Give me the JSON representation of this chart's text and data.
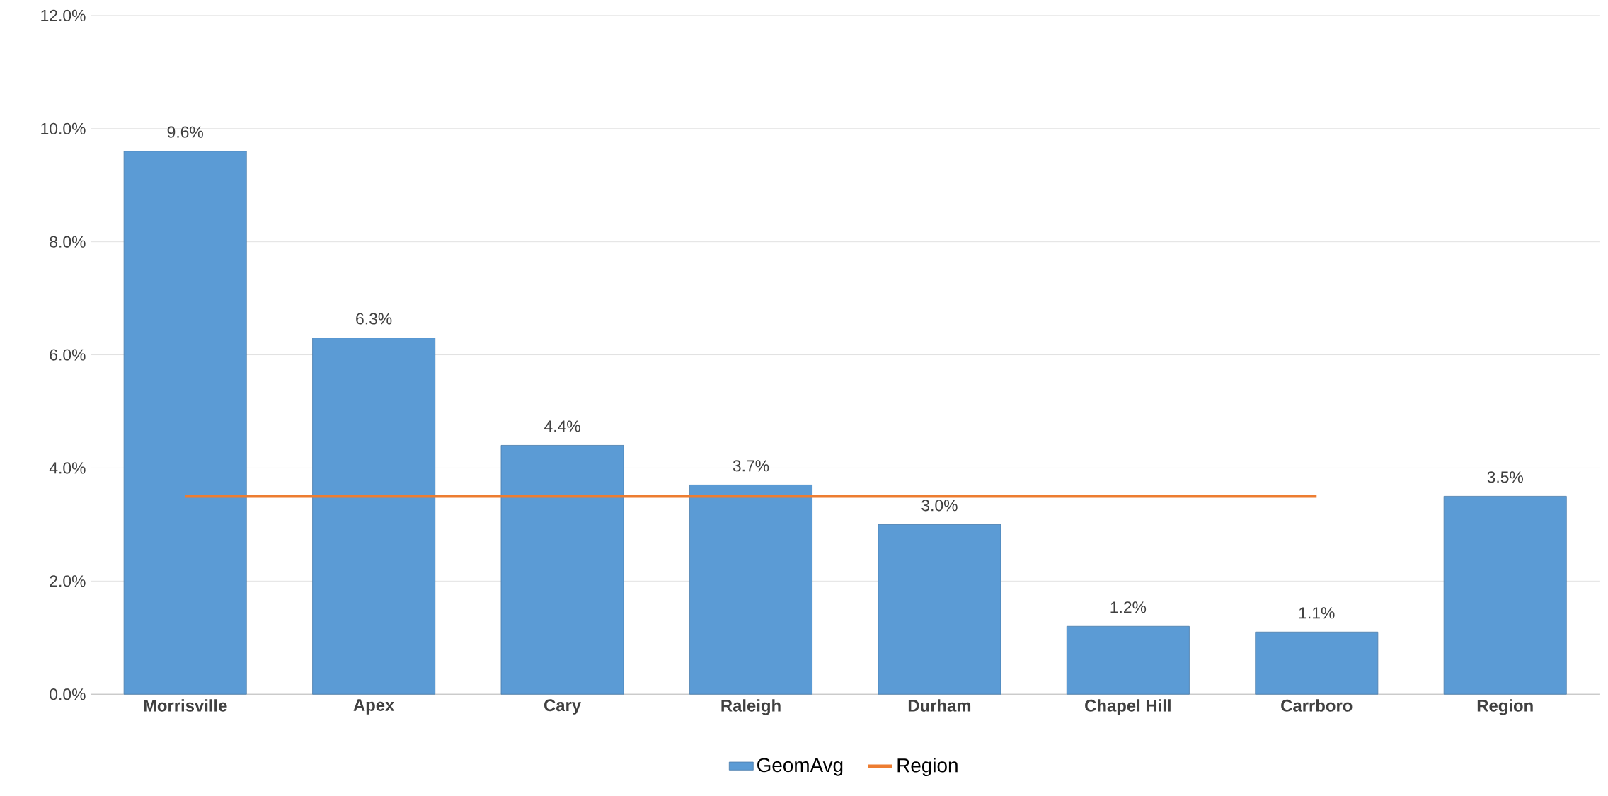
{
  "chart_data": {
    "type": "bar",
    "categories": [
      "Morrisville",
      "Apex",
      "Cary",
      "Raleigh",
      "Durham",
      "Chapel Hill",
      "Carrboro",
      "Region"
    ],
    "series": [
      {
        "name": "GeomAvg",
        "color": "#5b9bd5",
        "values": [
          9.6,
          6.3,
          4.4,
          3.7,
          3.0,
          1.2,
          1.1,
          3.5
        ],
        "value_labels": [
          "9.6%",
          "6.3%",
          "4.4%",
          "3.7%",
          "3.0%",
          "1.2%",
          "1.1%",
          "3.5%"
        ]
      },
      {
        "name": "Region",
        "type": "line",
        "color": "#ed7d31",
        "values": [
          3.5,
          3.5,
          3.5,
          3.5,
          3.5,
          3.5,
          3.5,
          null
        ]
      }
    ],
    "ylim": [
      0,
      12
    ],
    "yticks": [
      {
        "value": 0,
        "label": "0.0%"
      },
      {
        "value": 2,
        "label": "2.0%"
      },
      {
        "value": 4,
        "label": "4.0%"
      },
      {
        "value": 6,
        "label": "6.0%"
      },
      {
        "value": 8,
        "label": "8.0%"
      },
      {
        "value": 10,
        "label": "10.0%"
      },
      {
        "value": 12,
        "label": "12.0%"
      }
    ],
    "grid": "y",
    "legend": "bottom",
    "marker": "none",
    "line_style": "solid"
  }
}
